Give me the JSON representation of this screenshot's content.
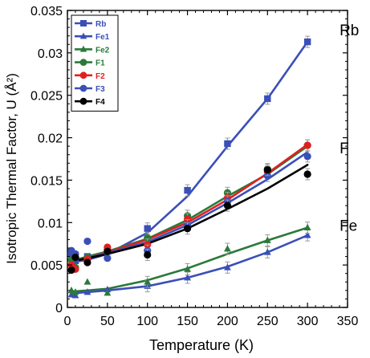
{
  "chart_data": {
    "type": "scatter",
    "xlabel": "Temperature (K)",
    "ylabel": "Isotropic Thermal Factor, U (Å²)",
    "xlim": [
      0,
      350
    ],
    "ylim": [
      0,
      0.035
    ],
    "xticks": [
      "0",
      "50",
      "100",
      "150",
      "200",
      "250",
      "300",
      "350"
    ],
    "yticks": [
      "0",
      "0.005",
      "0.01",
      "0.015",
      "0.02",
      "0.025",
      "0.03",
      "0.035"
    ],
    "legend_position": "top-left",
    "group_labels": [
      {
        "text": "Rb",
        "x": 318,
        "y": 0.0313
      },
      {
        "text": "F",
        "x": 318,
        "y": 0.0174
      },
      {
        "text": "Fe",
        "x": 318,
        "y": 0.0083
      }
    ],
    "series": [
      {
        "name": "Rb",
        "color": "#3a4fb8",
        "marker": "square",
        "x": [
          5,
          10,
          25,
          50,
          100,
          150,
          200,
          250,
          300
        ],
        "y": [
          0.0063,
          0.0055,
          0.006,
          0.0066,
          0.0093,
          0.0138,
          0.0193,
          0.0246,
          0.0313
        ]
      },
      {
        "name": "Fe1",
        "color": "#3a4fb8",
        "marker": "triangle",
        "x": [
          5,
          10,
          25,
          50,
          100,
          150,
          200,
          250,
          300
        ],
        "y": [
          0.0015,
          0.0014,
          0.0018,
          0.0021,
          0.0025,
          0.0035,
          0.0047,
          0.0065,
          0.0085
        ]
      },
      {
        "name": "Fe2",
        "color": "#2a7a3a",
        "marker": "triangle",
        "x": [
          5,
          10,
          25,
          50,
          100,
          150,
          200,
          250,
          300
        ],
        "y": [
          0.002,
          0.0018,
          0.003,
          0.0017,
          0.003,
          0.0045,
          0.0069,
          0.0079,
          0.0094
        ]
      },
      {
        "name": "F1",
        "color": "#2a7a3a",
        "marker": "circle",
        "x": [
          5,
          10,
          25,
          50,
          100,
          150,
          200,
          250,
          300
        ],
        "y": [
          0.0056,
          0.0047,
          0.0059,
          0.0068,
          0.0082,
          0.0108,
          0.0135,
          0.0163,
          0.0191
        ]
      },
      {
        "name": "F2",
        "color": "#e02020",
        "marker": "circle",
        "x": [
          5,
          10,
          25,
          50,
          100,
          150,
          200,
          250,
          300
        ],
        "y": [
          0.005,
          0.0045,
          0.0057,
          0.0071,
          0.0074,
          0.0104,
          0.0129,
          0.016,
          0.0191
        ]
      },
      {
        "name": "F3",
        "color": "#3a4fb8",
        "marker": "circle",
        "x": [
          5,
          10,
          25,
          50,
          100,
          150,
          200,
          250,
          300
        ],
        "y": [
          0.0067,
          0.0063,
          0.0078,
          0.0058,
          0.0067,
          0.0097,
          0.0125,
          0.0155,
          0.0178
        ]
      },
      {
        "name": "F4",
        "color": "#000000",
        "marker": "circle",
        "x": [
          5,
          10,
          25,
          50,
          100,
          150,
          200,
          250,
          300
        ],
        "y": [
          0.0044,
          0.0059,
          0.0053,
          0.0066,
          0.0062,
          0.0093,
          0.012,
          0.0162,
          0.0157
        ]
      }
    ],
    "fit_lines": [
      {
        "color": "#3a4fb8",
        "x": [
          5,
          10,
          25,
          50,
          100,
          150,
          200,
          250,
          300
        ],
        "y": [
          0.0053,
          0.0054,
          0.0056,
          0.0063,
          0.0088,
          0.0131,
          0.019,
          0.0246,
          0.0313
        ]
      },
      {
        "color": "#2a7a3a",
        "x": [
          5,
          10,
          25,
          50,
          100,
          150,
          200,
          250,
          300
        ],
        "y": [
          0.0055,
          0.0056,
          0.006,
          0.0066,
          0.0081,
          0.0103,
          0.0131,
          0.0157,
          0.019
        ]
      },
      {
        "color": "#e02020",
        "x": [
          5,
          10,
          25,
          50,
          100,
          150,
          200,
          250,
          300
        ],
        "y": [
          0.0053,
          0.0054,
          0.0058,
          0.0065,
          0.008,
          0.01,
          0.0127,
          0.0158,
          0.0192
        ]
      },
      {
        "color": "#3a4fb8",
        "x": [
          5,
          10,
          25,
          50,
          100,
          150,
          200,
          250,
          300
        ],
        "y": [
          0.0054,
          0.0055,
          0.0058,
          0.0064,
          0.0077,
          0.0097,
          0.0123,
          0.0151,
          0.0183
        ]
      },
      {
        "color": "#000000",
        "x": [
          5,
          10,
          25,
          50,
          100,
          150,
          200,
          250,
          300
        ],
        "y": [
          0.0054,
          0.0055,
          0.0058,
          0.0063,
          0.0075,
          0.0093,
          0.0116,
          0.014,
          0.0168
        ]
      },
      {
        "color": "#2a7a3a",
        "x": [
          5,
          10,
          25,
          50,
          100,
          150,
          200,
          250,
          300
        ],
        "y": [
          0.0019,
          0.0019,
          0.002,
          0.0022,
          0.0032,
          0.0046,
          0.0063,
          0.0079,
          0.0094
        ]
      },
      {
        "color": "#3a4fb8",
        "x": [
          5,
          10,
          25,
          50,
          100,
          150,
          200,
          250,
          300
        ],
        "y": [
          0.0017,
          0.0017,
          0.0018,
          0.002,
          0.0025,
          0.0035,
          0.0048,
          0.0065,
          0.0085
        ]
      }
    ]
  }
}
